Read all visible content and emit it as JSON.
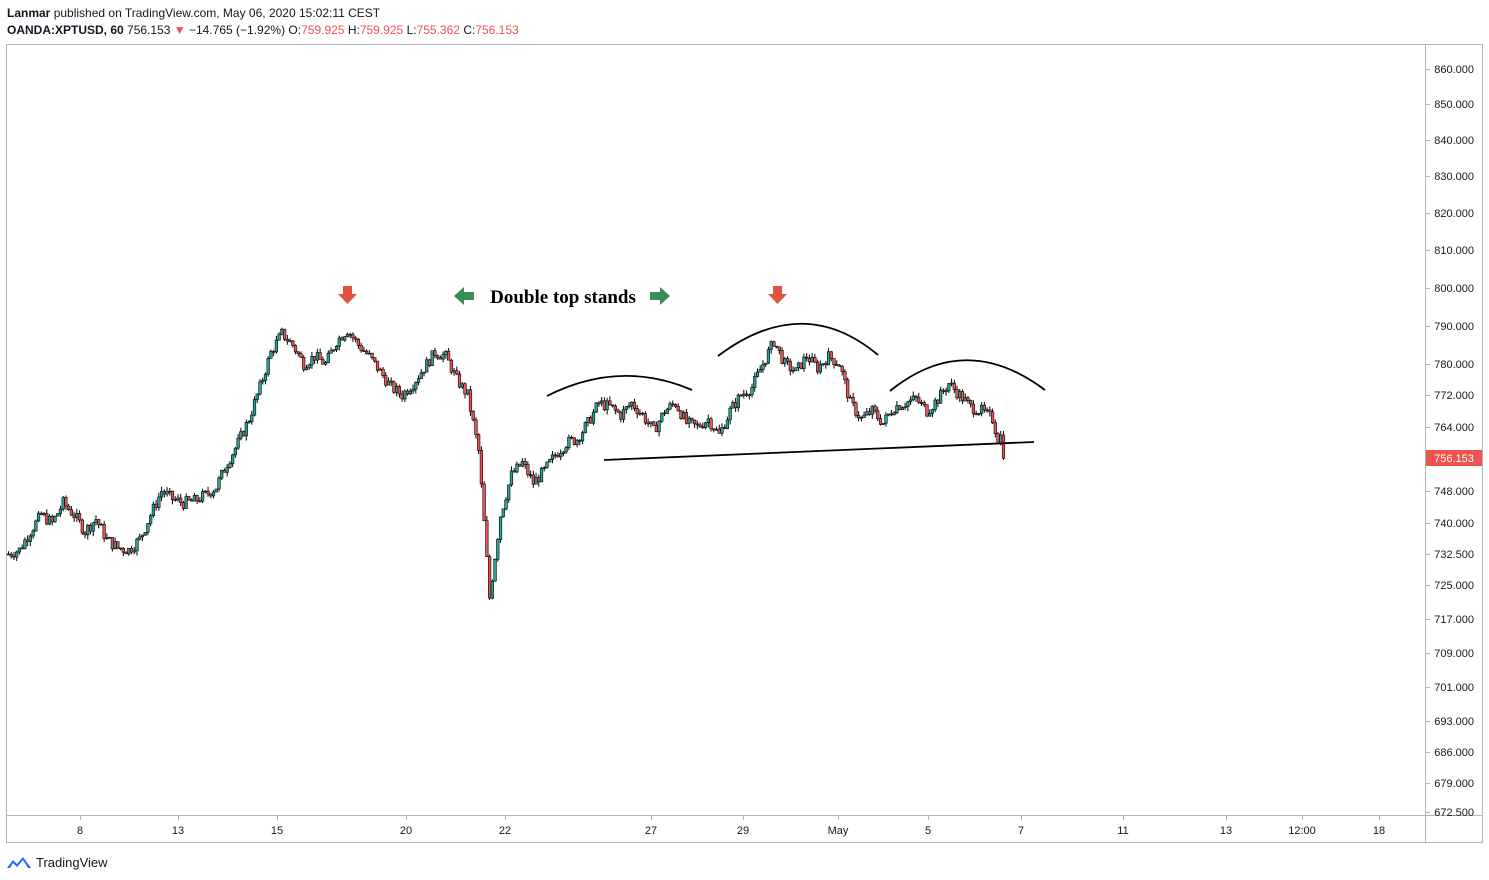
{
  "header": {
    "author": "Lanmar",
    "published_text": "published on TradingView.com, May 06, 2020 15:02:11 CEST",
    "symbol": "OANDA:XPTUSD, 60",
    "last": "756.153",
    "change": "−14.765 (−1.92%)",
    "open_label": "O:",
    "open": "759.925",
    "high_label": "H:",
    "high": "759.925",
    "low_label": "L:",
    "low": "755.362",
    "close_label": "C:",
    "close": "756.153"
  },
  "annotation": {
    "text": "Double top stands"
  },
  "footer": {
    "brand": "TradingView"
  },
  "colors": {
    "up": "#26a69a",
    "down": "#ef5350",
    "candle_outline": "#000000",
    "price_tag": "#ef5350",
    "arrow_red": "#e0533f",
    "arrow_green": "#3c8c58"
  },
  "chart_data": {
    "type": "candlestick",
    "symbol": "OANDA:XPTUSD",
    "interval": "60",
    "last_price": 756.153,
    "y_ticks": [
      860,
      850,
      840,
      830,
      820,
      810,
      800,
      790,
      780,
      772,
      764,
      748,
      740,
      732.5,
      725,
      717,
      709,
      701,
      693,
      686,
      679,
      672.5
    ],
    "y_tick_labels": [
      "860.000",
      "850.000",
      "840.000",
      "830.000",
      "820.000",
      "810.000",
      "800.000",
      "790.000",
      "780.000",
      "772.000",
      "764.000",
      "748.000",
      "740.000",
      "732.500",
      "725.000",
      "717.000",
      "709.000",
      "701.000",
      "693.000",
      "686.000",
      "679.000",
      "672.500"
    ],
    "x_tick_labels": [
      "8",
      "13",
      "15",
      "20",
      "22",
      "27",
      "29",
      "May",
      "5",
      "7",
      "11",
      "13",
      "12:00",
      "18"
    ],
    "price_path": [
      [
        0,
        732.5
      ],
      [
        4,
        733.5
      ],
      [
        8,
        738
      ],
      [
        12,
        742
      ],
      [
        16,
        740
      ],
      [
        20,
        745
      ],
      [
        24,
        742
      ],
      [
        28,
        738
      ],
      [
        32,
        741
      ],
      [
        36,
        736
      ],
      [
        40,
        734
      ],
      [
        44,
        733.5
      ],
      [
        48,
        736
      ],
      [
        52,
        742
      ],
      [
        56,
        748
      ],
      [
        60,
        746
      ],
      [
        64,
        745
      ],
      [
        68,
        745.5
      ],
      [
        72,
        747
      ],
      [
        76,
        749
      ],
      [
        80,
        755
      ],
      [
        84,
        760
      ],
      [
        88,
        766
      ],
      [
        92,
        774
      ],
      [
        96,
        783
      ],
      [
        100,
        788
      ],
      [
        104,
        785
      ],
      [
        108,
        780
      ],
      [
        112,
        782
      ],
      [
        116,
        780
      ],
      [
        120,
        786
      ],
      [
        124,
        789
      ],
      [
        128,
        785
      ],
      [
        132,
        782
      ],
      [
        136,
        778
      ],
      [
        140,
        774
      ],
      [
        144,
        772
      ],
      [
        148,
        775
      ],
      [
        152,
        779
      ],
      [
        156,
        783
      ],
      [
        160,
        782
      ],
      [
        164,
        776
      ],
      [
        168,
        772
      ],
      [
        172,
        758
      ],
      [
        176,
        722
      ],
      [
        180,
        742
      ],
      [
        184,
        752
      ],
      [
        188,
        755
      ],
      [
        192,
        750
      ],
      [
        196,
        753
      ],
      [
        200,
        757
      ],
      [
        204,
        760
      ],
      [
        208,
        761
      ],
      [
        212,
        765
      ],
      [
        216,
        770
      ],
      [
        220,
        769
      ],
      [
        224,
        767
      ],
      [
        228,
        770
      ],
      [
        232,
        767
      ],
      [
        236,
        763
      ],
      [
        240,
        768
      ],
      [
        244,
        770
      ],
      [
        248,
        765
      ],
      [
        252,
        764
      ],
      [
        256,
        766
      ],
      [
        260,
        762
      ],
      [
        264,
        768
      ],
      [
        268,
        772
      ],
      [
        272,
        774
      ],
      [
        276,
        780
      ],
      [
        280,
        786
      ],
      [
        284,
        780
      ],
      [
        288,
        778
      ],
      [
        292,
        782
      ],
      [
        296,
        779
      ],
      [
        300,
        782
      ],
      [
        304,
        780
      ],
      [
        308,
        770
      ],
      [
        312,
        766
      ],
      [
        316,
        768
      ],
      [
        320,
        765
      ],
      [
        324,
        769
      ],
      [
        328,
        770
      ],
      [
        332,
        771
      ],
      [
        336,
        768
      ],
      [
        340,
        771
      ],
      [
        344,
        775
      ],
      [
        348,
        772
      ],
      [
        352,
        769
      ],
      [
        356,
        768
      ],
      [
        360,
        766
      ],
      [
        364,
        756.153
      ]
    ],
    "candle_count": 365,
    "y_range": [
      672.5,
      865
    ]
  }
}
